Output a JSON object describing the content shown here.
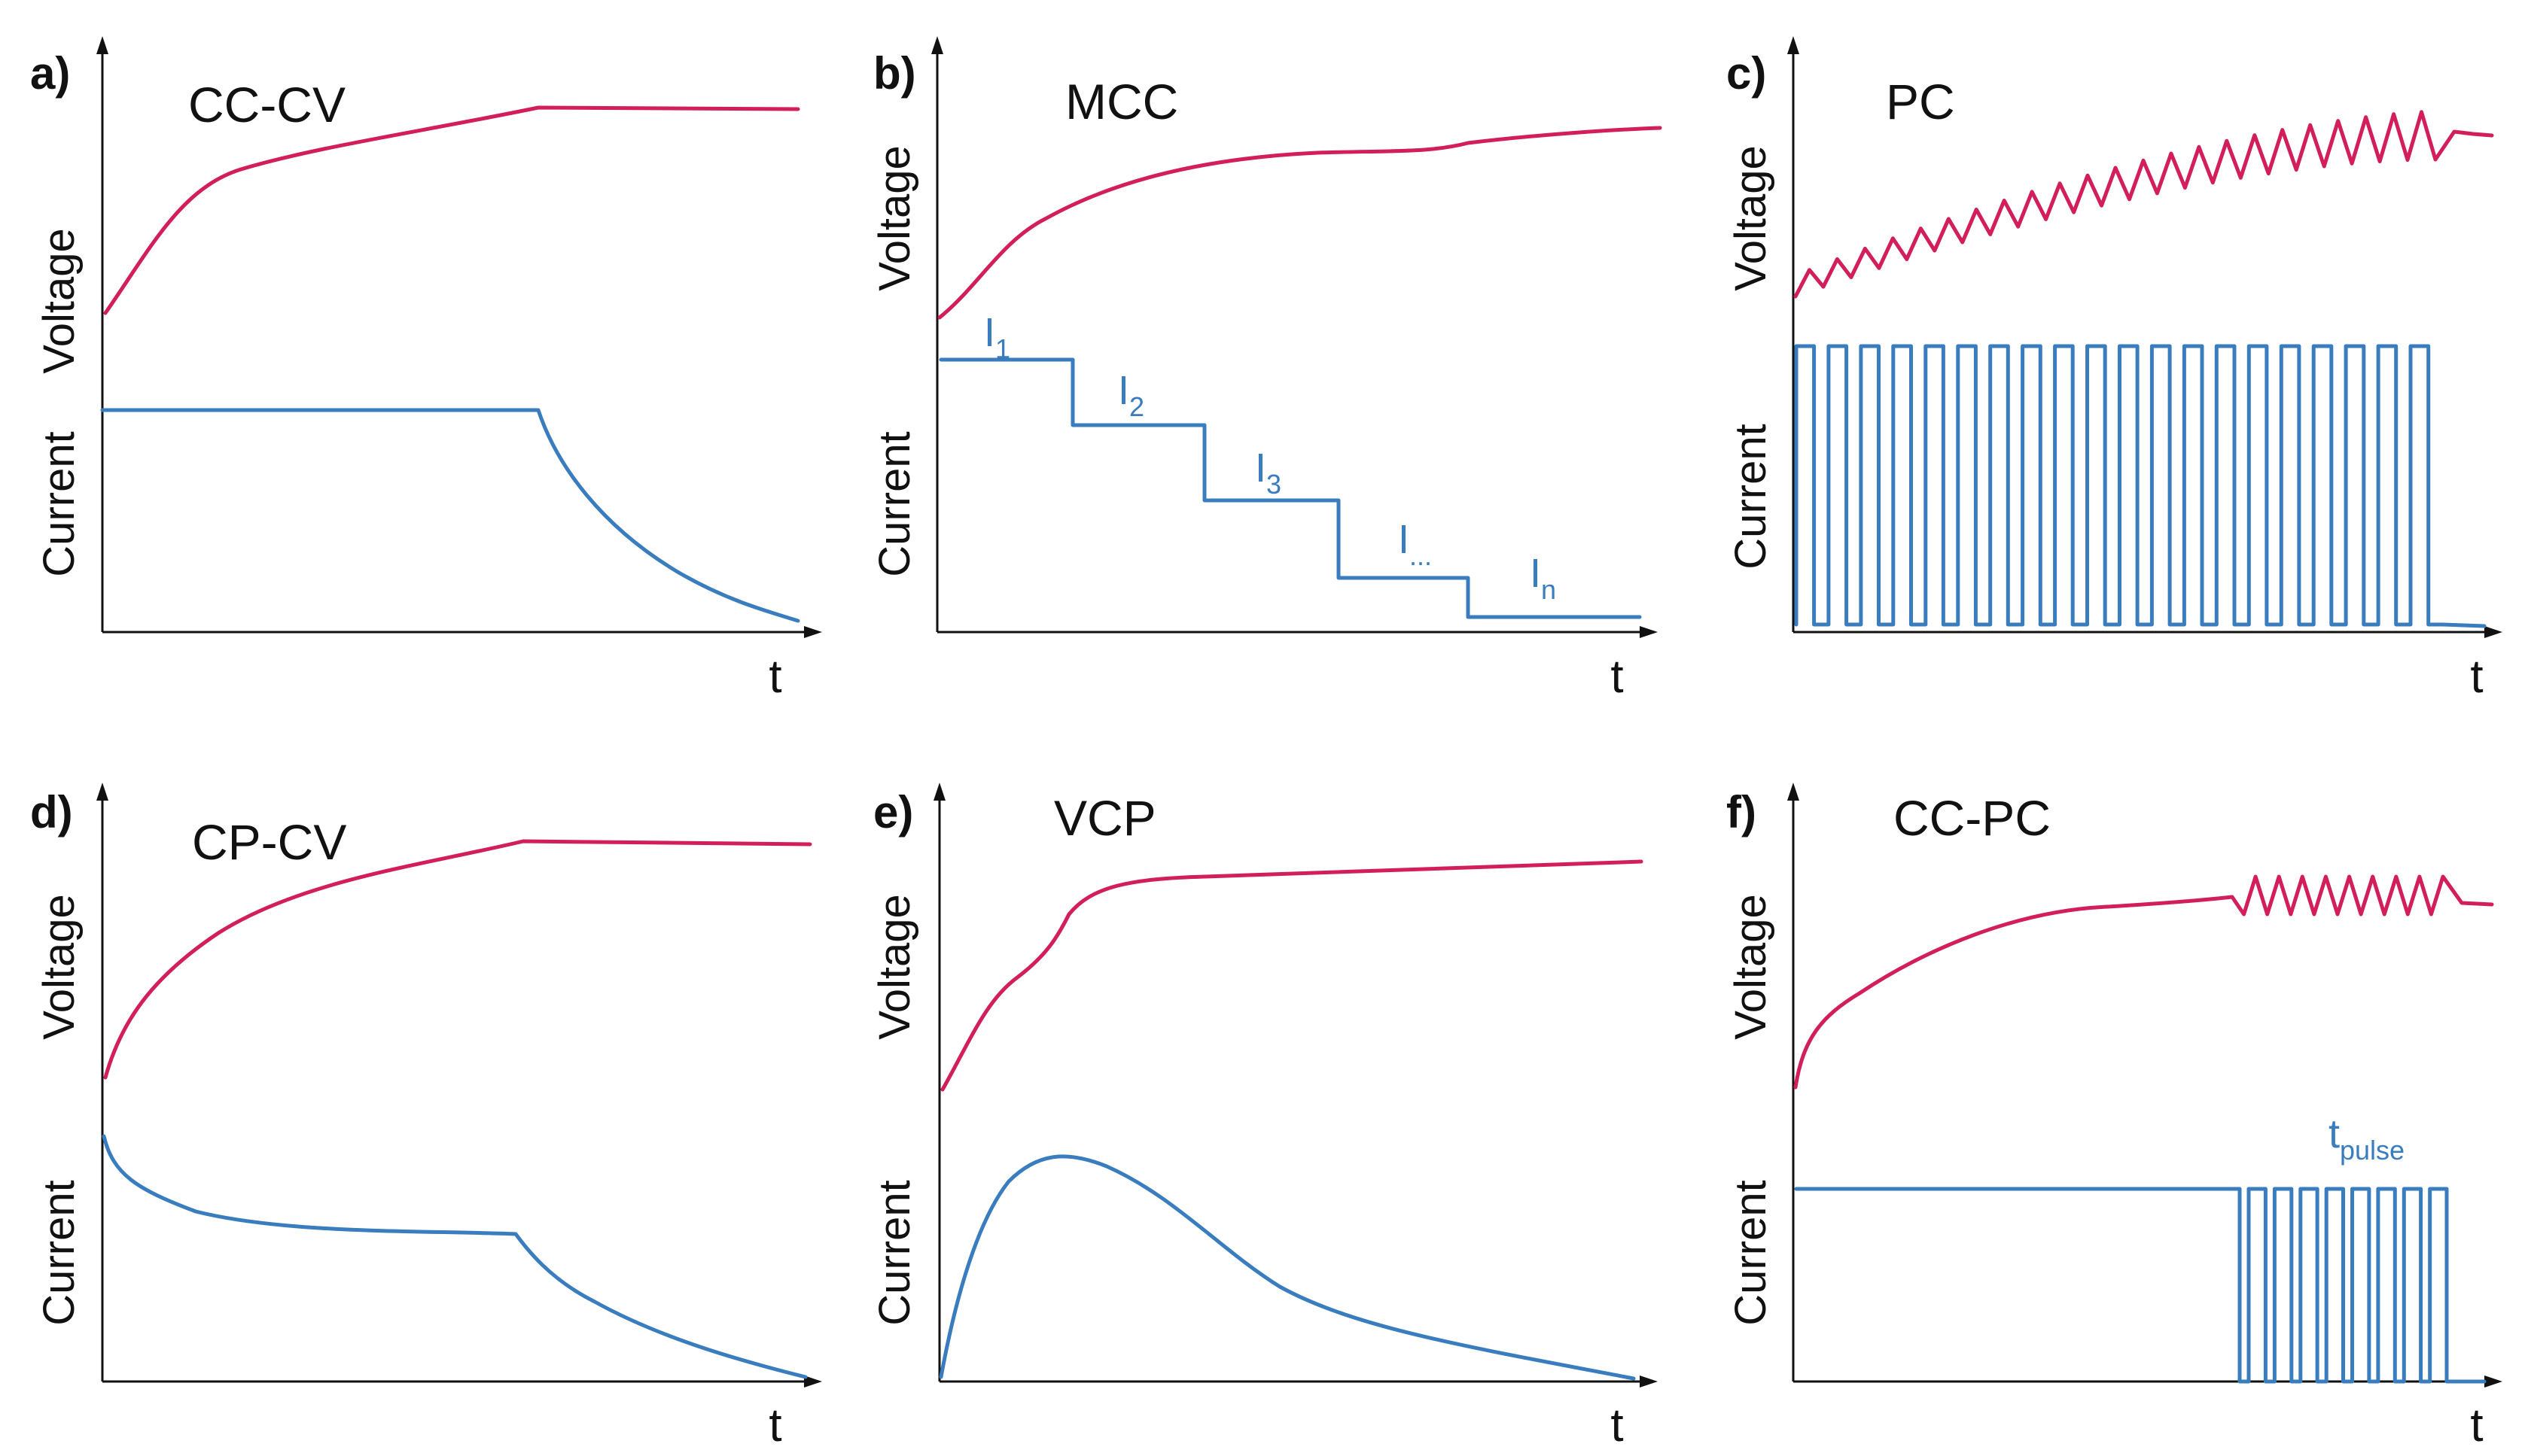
{
  "colors": {
    "voltage": "#d21e5a",
    "current": "#3a7dbf",
    "axis": "#111111"
  },
  "panels": [
    {
      "id": "a",
      "label": "a)",
      "title": "CC-CV",
      "ylabel_top": "Voltage",
      "ylabel_bottom": "Current",
      "xlabel": "t"
    },
    {
      "id": "b",
      "label": "b)",
      "title": "MCC",
      "ylabel_top": "Voltage",
      "ylabel_bottom": "Current",
      "xlabel": "t",
      "current_labels": [
        {
          "main": "I",
          "sub": "1"
        },
        {
          "main": "I",
          "sub": "2"
        },
        {
          "main": "I",
          "sub": "3"
        },
        {
          "main": "I",
          "sub": "..."
        },
        {
          "main": "I",
          "sub": "n"
        }
      ]
    },
    {
      "id": "c",
      "label": "c)",
      "title": "PC",
      "ylabel_top": "Voltage",
      "ylabel_bottom": "Current",
      "xlabel": "t"
    },
    {
      "id": "d",
      "label": "d)",
      "title": "CP-CV",
      "ylabel_top": "Voltage",
      "ylabel_bottom": "Current",
      "xlabel": "t"
    },
    {
      "id": "e",
      "label": "e)",
      "title": "VCP",
      "ylabel_top": "Voltage",
      "ylabel_bottom": "Current",
      "xlabel": "t"
    },
    {
      "id": "f",
      "label": "f)",
      "title": "CC-PC",
      "ylabel_top": "Voltage",
      "ylabel_bottom": "Current",
      "xlabel": "t",
      "pulse_label": {
        "main": "t",
        "sub": "pulse"
      }
    }
  ]
}
